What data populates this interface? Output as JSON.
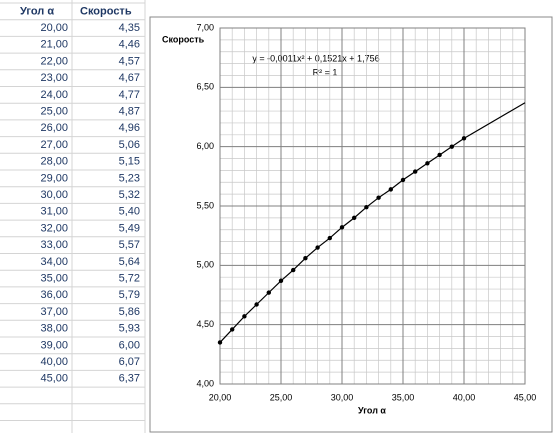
{
  "table": {
    "header": [
      "Угол α",
      "Скорость"
    ],
    "rows": [
      [
        "20,00",
        "4,35"
      ],
      [
        "21,00",
        "4,46"
      ],
      [
        "22,00",
        "4,57"
      ],
      [
        "23,00",
        "4,67"
      ],
      [
        "24,00",
        "4,77"
      ],
      [
        "25,00",
        "4,87"
      ],
      [
        "26,00",
        "4,96"
      ],
      [
        "27,00",
        "5,06"
      ],
      [
        "28,00",
        "5,15"
      ],
      [
        "29,00",
        "5,23"
      ],
      [
        "30,00",
        "5,32"
      ],
      [
        "31,00",
        "5,40"
      ],
      [
        "32,00",
        "5,49"
      ],
      [
        "33,00",
        "5,57"
      ],
      [
        "34,00",
        "5,64"
      ],
      [
        "35,00",
        "5,72"
      ],
      [
        "36,00",
        "5,79"
      ],
      [
        "37,00",
        "5,86"
      ],
      [
        "38,00",
        "5,93"
      ],
      [
        "39,00",
        "6,00"
      ],
      [
        "40,00",
        "6,07"
      ],
      [
        "45,00",
        "6,37"
      ]
    ]
  },
  "chart_data": {
    "type": "scatter",
    "y_label": "Скорость",
    "x_label": "Угол α",
    "annotations": [
      "y = -0,0011x² + 0,1521x + 1,756",
      "R² = 1"
    ],
    "series": [
      {
        "color": "#000000",
        "marker": "dot",
        "x": [
          20,
          21,
          22,
          23,
          24,
          25,
          26,
          27,
          28,
          29,
          30,
          31,
          32,
          33,
          34,
          35,
          36,
          37,
          38,
          39,
          40
        ],
        "values": [
          4.35,
          4.46,
          4.57,
          4.67,
          4.77,
          4.87,
          4.96,
          5.06,
          5.15,
          5.23,
          5.32,
          5.4,
          5.49,
          5.57,
          5.64,
          5.72,
          5.79,
          5.86,
          5.93,
          6.0,
          6.07
        ]
      },
      {
        "color": "#000000",
        "marker": "line",
        "x": [
          20,
          21,
          22,
          23,
          24,
          25,
          26,
          27,
          28,
          29,
          30,
          31,
          32,
          33,
          34,
          35,
          36,
          37,
          38,
          39,
          40,
          45
        ],
        "values": [
          4.35,
          4.46,
          4.57,
          4.67,
          4.77,
          4.87,
          4.96,
          5.06,
          5.15,
          5.23,
          5.32,
          5.4,
          5.49,
          5.57,
          5.64,
          5.72,
          5.79,
          5.86,
          5.93,
          6.0,
          6.07,
          6.37
        ]
      }
    ],
    "xlim": [
      20,
      45
    ],
    "xticks": [
      {
        "value": 20,
        "label": "20,00"
      },
      {
        "value": 25,
        "label": "25,00"
      },
      {
        "value": 30,
        "label": "30,00"
      },
      {
        "value": 35,
        "label": "35,00"
      },
      {
        "value": 40,
        "label": "40,00"
      },
      {
        "value": 45,
        "label": "45,00"
      }
    ],
    "ylim": [
      4,
      7
    ],
    "yticks": [
      {
        "value": 4,
        "label": "4,00"
      },
      {
        "value": 4.5,
        "label": "4,50"
      },
      {
        "value": 5,
        "label": "5,00"
      },
      {
        "value": 5.5,
        "label": "5,50"
      },
      {
        "value": 6,
        "label": "6,00"
      },
      {
        "value": 6.5,
        "label": "6,50"
      },
      {
        "value": 7,
        "label": "7,00"
      }
    ],
    "grid": true,
    "minor_grid": {
      "x": 1,
      "y": 0.1
    }
  }
}
